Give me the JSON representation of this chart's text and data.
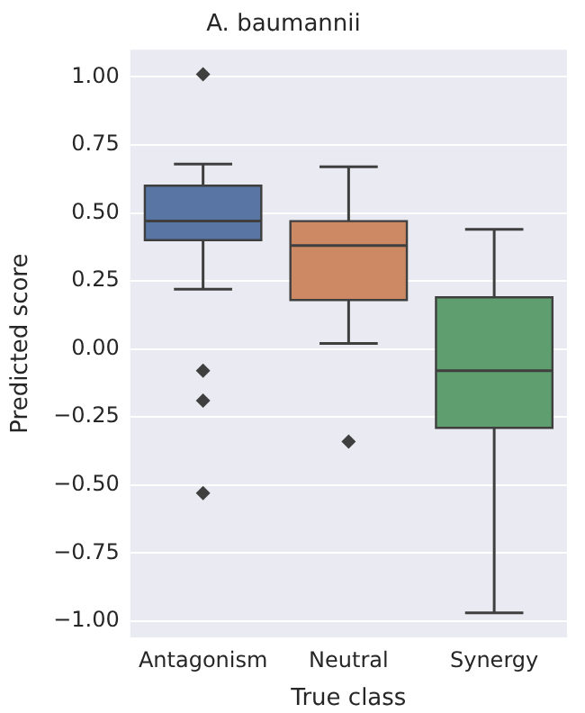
{
  "chart_data": {
    "type": "box",
    "title": "A. baumannii",
    "xlabel": "True class",
    "ylabel": "Predicted score",
    "categories": [
      "Antagonism",
      "Neutral",
      "Synergy"
    ],
    "colors": [
      "#5875a4",
      "#cc8963",
      "#5f9e6e"
    ],
    "boxes": [
      {
        "low": 0.22,
        "q1": 0.4,
        "median": 0.47,
        "q3": 0.6,
        "high": 0.68,
        "outliers": [
          1.01,
          -0.08,
          -0.19,
          -0.53
        ]
      },
      {
        "low": 0.02,
        "q1": 0.18,
        "median": 0.38,
        "q3": 0.47,
        "high": 0.67,
        "outliers": [
          -0.34
        ]
      },
      {
        "low": -0.97,
        "q1": -0.29,
        "median": -0.08,
        "q3": 0.19,
        "high": 0.44
      }
    ],
    "ylim": [
      -1.06,
      1.1
    ],
    "yticks": [
      {
        "value": -1,
        "label": "−1.00"
      },
      {
        "value": -0.75,
        "label": "−0.75"
      },
      {
        "value": -0.5,
        "label": "−0.50"
      },
      {
        "value": -0.25,
        "label": "−0.25"
      },
      {
        "value": 0,
        "label": "0.00"
      },
      {
        "value": 0.25,
        "label": "0.25"
      },
      {
        "value": 0.5,
        "label": "0.50"
      },
      {
        "value": 0.75,
        "label": "0.75"
      },
      {
        "value": 1,
        "label": "1.00"
      }
    ],
    "grid": "y",
    "marker": "diamond"
  }
}
